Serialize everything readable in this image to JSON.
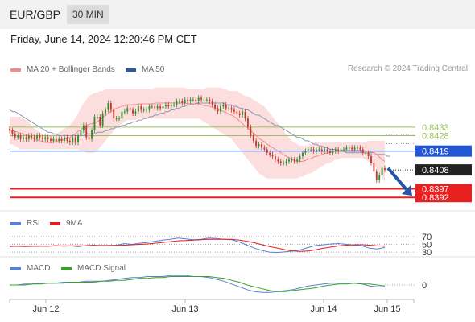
{
  "header": {
    "symbol": "EUR/GBP",
    "timeframe": "30 MIN"
  },
  "datetime": "Friday, June 14, 2024 12:20:46 PM CET",
  "main_legend": [
    {
      "label": "MA 20 + Bollinger Bands",
      "color": "#f58a8a"
    },
    {
      "label": "MA 50",
      "color": "#2c5aa0"
    }
  ],
  "research_credit": "Research © 2024 Trading Central",
  "rsi_legend": [
    {
      "label": "RSI",
      "color": "#5a7fd6"
    },
    {
      "label": "9MA",
      "color": "#e02020"
    }
  ],
  "macd_legend": [
    {
      "label": "MACD",
      "color": "#5a7fd6"
    },
    {
      "label": "MACD Signal",
      "color": "#3aa02a"
    }
  ],
  "colors": {
    "bull": "#2e8b2e",
    "bear": "#c0392b",
    "resistance": "#9ac25a",
    "pivot": "#2457d6",
    "support": "#e82020",
    "band": "#fcd6d6",
    "ma20": "#f58a8a",
    "ma50": "#8a9ab8",
    "arrow": "#2457a8"
  },
  "chart_data": [
    {
      "type": "candlestick",
      "ylim": [
        0.8386,
        0.8462
      ],
      "x_tick_labels": [
        "Jun 12",
        "Jun 13",
        "Jun 14",
        "Jun 15"
      ],
      "close_series": [
        0.8431,
        0.8429,
        0.8427,
        0.8428,
        0.8426,
        0.8427,
        0.8426,
        0.8428,
        0.8427,
        0.8426,
        0.8428,
        0.8427,
        0.8426,
        0.8427,
        0.8426,
        0.8425,
        0.8426,
        0.8425,
        0.8426,
        0.8425,
        0.8427,
        0.8425,
        0.8424,
        0.8427,
        0.8424,
        0.8428,
        0.8431,
        0.8434,
        0.8427,
        0.8426,
        0.8431,
        0.8439,
        0.8439,
        0.8434,
        0.8441,
        0.8443,
        0.8447,
        0.8443,
        0.8438,
        0.8438,
        0.8438,
        0.8442,
        0.8442,
        0.8444,
        0.8443,
        0.8441,
        0.8442,
        0.8445,
        0.8443,
        0.8443,
        0.8443,
        0.8445,
        0.8445,
        0.8444,
        0.8445,
        0.8444,
        0.8445,
        0.8446,
        0.8445,
        0.8446,
        0.8446,
        0.8448,
        0.8448,
        0.8447,
        0.8449,
        0.8448,
        0.8449,
        0.8449,
        0.8448,
        0.845,
        0.8449,
        0.8449,
        0.8449,
        0.8448,
        0.8446,
        0.8444,
        0.8442,
        0.8445,
        0.8446,
        0.8444,
        0.8444,
        0.8443,
        0.8442,
        0.8441,
        0.844,
        0.8442,
        0.8438,
        0.8433,
        0.8428,
        0.8425,
        0.8422,
        0.8423,
        0.8421,
        0.842,
        0.8418,
        0.8417,
        0.8416,
        0.8414,
        0.8413,
        0.8412,
        0.8412,
        0.8413,
        0.8414,
        0.8414,
        0.8413,
        0.8414,
        0.8416,
        0.8418,
        0.8419,
        0.842,
        0.842,
        0.8419,
        0.842,
        0.842,
        0.8419,
        0.842,
        0.8419,
        0.8418,
        0.8419,
        0.842,
        0.8419,
        0.842,
        0.842,
        0.8421,
        0.8421,
        0.842,
        0.8421,
        0.8421,
        0.842,
        0.8418,
        0.8418,
        0.8416,
        0.8412,
        0.8407,
        0.8402,
        0.8405,
        0.8409,
        0.8408
      ],
      "bollinger_upper": [
        0.8439,
        0.8439,
        0.8439,
        0.8439,
        0.8439,
        0.8438,
        0.8437,
        0.8436,
        0.8434,
        0.8432,
        0.8431,
        0.843,
        0.8429,
        0.8428,
        0.8428,
        0.8428,
        0.8429,
        0.8429,
        0.843,
        0.8431,
        0.8432,
        0.8433,
        0.8434,
        0.8436,
        0.8438,
        0.8441,
        0.8444,
        0.8447,
        0.8449,
        0.8451,
        0.8452,
        0.8453,
        0.8453,
        0.8454,
        0.8454,
        0.8455,
        0.8455,
        0.8455,
        0.8455,
        0.8455,
        0.8455,
        0.8455,
        0.8455,
        0.8455,
        0.8455,
        0.8455,
        0.8455,
        0.8455,
        0.8455,
        0.8455,
        0.8455,
        0.8455,
        0.8455,
        0.8456,
        0.8456,
        0.8456,
        0.8456,
        0.8456,
        0.8456,
        0.8456,
        0.8456,
        0.8456,
        0.8456,
        0.8456,
        0.8456,
        0.8455,
        0.8455,
        0.8455,
        0.8455,
        0.8455,
        0.8455,
        0.8455,
        0.8456,
        0.8456,
        0.8456,
        0.8456,
        0.8456,
        0.8456,
        0.8455,
        0.8455,
        0.8454,
        0.8454,
        0.8454,
        0.8454,
        0.8453,
        0.8452,
        0.8451,
        0.8451,
        0.845,
        0.8449,
        0.8448,
        0.8447,
        0.8446,
        0.8445,
        0.8443,
        0.8441,
        0.8439,
        0.8437,
        0.8435,
        0.8433,
        0.8431,
        0.8429,
        0.8427,
        0.8425,
        0.8424,
        0.8423,
        0.8422,
        0.8422,
        0.8422,
        0.8423,
        0.8423,
        0.8424,
        0.8424,
        0.8424,
        0.8424,
        0.8424,
        0.8424,
        0.8424,
        0.8424,
        0.8424,
        0.8424,
        0.8424,
        0.8424,
        0.8424,
        0.8424,
        0.8424,
        0.8424,
        0.8424,
        0.8424,
        0.8424,
        0.8424,
        0.8425,
        0.8425,
        0.8425,
        0.8425,
        0.8425,
        0.8425,
        0.8425
      ],
      "bollinger_lower": [
        0.8423,
        0.8423,
        0.8422,
        0.8421,
        0.842,
        0.842,
        0.842,
        0.842,
        0.842,
        0.842,
        0.842,
        0.842,
        0.842,
        0.842,
        0.842,
        0.842,
        0.842,
        0.842,
        0.842,
        0.842,
        0.842,
        0.842,
        0.842,
        0.842,
        0.842,
        0.842,
        0.8419,
        0.8419,
        0.8418,
        0.8418,
        0.8418,
        0.8418,
        0.8419,
        0.8421,
        0.8423,
        0.8425,
        0.8427,
        0.8429,
        0.8431,
        0.8433,
        0.8434,
        0.8435,
        0.8436,
        0.8437,
        0.8437,
        0.8437,
        0.8437,
        0.8438,
        0.8438,
        0.8438,
        0.8438,
        0.8438,
        0.8438,
        0.8438,
        0.8438,
        0.8438,
        0.8438,
        0.8438,
        0.8438,
        0.8438,
        0.8438,
        0.8438,
        0.8438,
        0.8438,
        0.8438,
        0.8438,
        0.8438,
        0.8438,
        0.8438,
        0.8438,
        0.8437,
        0.8436,
        0.8435,
        0.8434,
        0.8433,
        0.8432,
        0.8431,
        0.843,
        0.8429,
        0.8428,
        0.8427,
        0.8426,
        0.8424,
        0.8422,
        0.842,
        0.8418,
        0.8416,
        0.8414,
        0.8412,
        0.841,
        0.8408,
        0.8406,
        0.8405,
        0.8404,
        0.8403,
        0.8403,
        0.8403,
        0.8403,
        0.8403,
        0.8403,
        0.8403,
        0.8403,
        0.8403,
        0.8403,
        0.8403,
        0.8403,
        0.8404,
        0.8404,
        0.8405,
        0.8406,
        0.8406,
        0.8407,
        0.8408,
        0.8409,
        0.841,
        0.8411,
        0.8412,
        0.8412,
        0.8413,
        0.8414,
        0.8414,
        0.8415,
        0.8415,
        0.8415,
        0.8415,
        0.8415,
        0.8415,
        0.8415,
        0.8415,
        0.8415,
        0.8414,
        0.8413,
        0.8412,
        0.8411,
        0.8409,
        0.8406,
        0.8403,
        0.8401,
        0.84,
        0.8399
      ],
      "ma50": [
        0.8443,
        0.8442,
        0.8442,
        0.8441,
        0.844,
        0.8439,
        0.8438,
        0.8437,
        0.8436,
        0.8435,
        0.8434,
        0.8433,
        0.8432,
        0.8431,
        0.843,
        0.843,
        0.8429,
        0.8429,
        0.8428,
        0.8428,
        0.8428,
        0.8428,
        0.8428,
        0.8428,
        0.8428,
        0.8428,
        0.8428,
        0.8428,
        0.8429,
        0.8429,
        0.8429,
        0.8429,
        0.843,
        0.843,
        0.843,
        0.8431,
        0.8431,
        0.8432,
        0.8432,
        0.8433,
        0.8433,
        0.8434,
        0.8434,
        0.8435,
        0.8435,
        0.8436,
        0.8436,
        0.8437,
        0.8437,
        0.8438,
        0.8438,
        0.8439,
        0.8439,
        0.844,
        0.844,
        0.8441,
        0.8441,
        0.8442,
        0.8442,
        0.8443,
        0.8443,
        0.8444,
        0.8444,
        0.8445,
        0.8445,
        0.8446,
        0.8446,
        0.8446,
        0.8447,
        0.8447,
        0.8447,
        0.8447,
        0.8447,
        0.8447,
        0.8447,
        0.8447,
        0.8447,
        0.8447,
        0.8447,
        0.8446,
        0.8446,
        0.8446,
        0.8445,
        0.8445,
        0.8444,
        0.8444,
        0.8443,
        0.8443,
        0.8442,
        0.8441,
        0.844,
        0.844,
        0.8439,
        0.8438,
        0.8437,
        0.8436,
        0.8435,
        0.8434,
        0.8434,
        0.8433,
        0.8432,
        0.8431,
        0.843,
        0.8429,
        0.8428,
        0.8427,
        0.8427,
        0.8426,
        0.8425,
        0.8425,
        0.8424,
        0.8423,
        0.8423,
        0.8422,
        0.8422,
        0.8421,
        0.8421,
        0.842,
        0.842,
        0.842,
        0.8419,
        0.8419,
        0.8419,
        0.8418,
        0.8418,
        0.8418,
        0.8418,
        0.8418,
        0.8418,
        0.8418,
        0.8418,
        0.8418,
        0.8418,
        0.8418,
        0.8417,
        0.8417,
        0.8417,
        0.8417,
        0.8416,
        0.8416
      ],
      "levels": [
        {
          "value": 0.8433,
          "label": "0.8433",
          "kind": "resistance"
        },
        {
          "value": 0.8428,
          "label": "0.8428",
          "kind": "resistance"
        },
        {
          "value": 0.8419,
          "label": "0.8419",
          "kind": "pivot"
        },
        {
          "value": 0.8408,
          "label": "0.8408",
          "kind": "last"
        },
        {
          "value": 0.8397,
          "label": "0.8397",
          "kind": "support"
        },
        {
          "value": 0.8392,
          "label": "0.8392",
          "kind": "support"
        }
      ],
      "arrow": {
        "from": 0.8409,
        "to": 0.8393,
        "direction": "down"
      }
    },
    {
      "type": "line",
      "name": "RSI",
      "ylim": [
        20,
        80
      ],
      "reference_levels": [
        70,
        50,
        30
      ],
      "series": [
        {
          "name": "RSI",
          "values": [
            44,
            45,
            44,
            45,
            46,
            45,
            47,
            45,
            46,
            44,
            47,
            48,
            46,
            47,
            48,
            52,
            50,
            53,
            55,
            58,
            61,
            63,
            66,
            64,
            62,
            63,
            66,
            65,
            63,
            62,
            56,
            48,
            40,
            34,
            30,
            29,
            31,
            33,
            36,
            42,
            47,
            49,
            51,
            52,
            50,
            48,
            46,
            40,
            38,
            42
          ]
        },
        {
          "name": "9MA",
          "values": [
            45,
            45,
            45,
            45,
            45,
            45,
            46,
            46,
            46,
            46,
            46,
            47,
            47,
            47,
            47,
            48,
            49,
            50,
            51,
            53,
            55,
            57,
            59,
            60,
            61,
            62,
            63,
            63,
            63,
            63,
            61,
            58,
            54,
            49,
            44,
            40,
            36,
            33,
            32,
            33,
            36,
            40,
            43,
            46,
            48,
            49,
            49,
            48,
            46,
            45
          ]
        }
      ]
    },
    {
      "type": "line",
      "name": "MACD",
      "ylim": [
        -0.0012,
        0.0012
      ],
      "reference_levels": [
        0
      ],
      "series": [
        {
          "name": "MACD",
          "values": [
            0.0,
            0.0,
            0.0001,
            0.0001,
            0.0002,
            0.0002,
            0.0002,
            0.0003,
            0.0003,
            0.0003,
            0.0004,
            0.0004,
            0.0004,
            0.0005,
            0.0006,
            0.0007,
            0.0008,
            0.0008,
            0.0009,
            0.0009,
            0.0009,
            0.001,
            0.001,
            0.001,
            0.0009,
            0.0009,
            0.0008,
            0.0006,
            0.0004,
            0.0001,
            -0.0002,
            -0.0005,
            -0.0007,
            -0.0008,
            -0.0008,
            -0.0007,
            -0.0006,
            -0.0005,
            -0.0003,
            -0.0001,
            0.0,
            0.0001,
            0.0002,
            0.0002,
            0.0002,
            0.0002,
            0.0001,
            -0.0001,
            -0.0002,
            -0.0002
          ]
        },
        {
          "name": "MACD Signal",
          "values": [
            0.0,
            0.0,
            0.0,
            0.0001,
            0.0001,
            0.0002,
            0.0002,
            0.0002,
            0.0003,
            0.0003,
            0.0003,
            0.0003,
            0.0004,
            0.0004,
            0.0005,
            0.0005,
            0.0006,
            0.0007,
            0.0007,
            0.0008,
            0.0008,
            0.0009,
            0.0009,
            0.0009,
            0.0009,
            0.0009,
            0.0009,
            0.0008,
            0.0007,
            0.0005,
            0.0003,
            0.0,
            -0.0002,
            -0.0004,
            -0.0006,
            -0.0007,
            -0.0007,
            -0.0006,
            -0.0005,
            -0.0004,
            -0.0003,
            -0.0001,
            0.0,
            0.0001,
            0.0001,
            0.0002,
            0.0001,
            0.0001,
            0.0,
            -0.0001
          ]
        }
      ]
    }
  ]
}
